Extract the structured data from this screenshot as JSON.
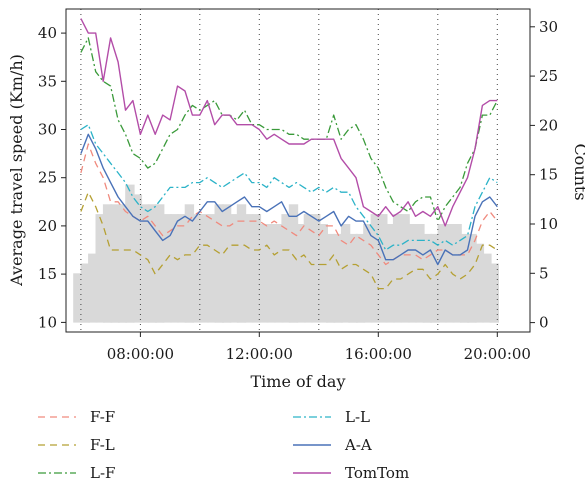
{
  "chart_data": {
    "type": "line",
    "xlabel": "Time of day",
    "ylabel_left": "Average travel speed (Km/h)",
    "ylabel_right": "Counts",
    "x_ticks": [
      "08:00:00",
      "12:00:00",
      "16:00:00",
      "20:00:00"
    ],
    "x_tick_hours": [
      8,
      12,
      16,
      20
    ],
    "x_range_hours": [
      5.5,
      21.1
    ],
    "y_left_ticks": [
      10,
      15,
      20,
      25,
      30,
      35,
      40
    ],
    "y_left_range": [
      9,
      42.5
    ],
    "y_right_ticks": [
      0,
      5,
      10,
      15,
      20,
      25,
      30
    ],
    "y_right_range": [
      -0.95,
      31.8
    ],
    "vertical_gridlines_hours": [
      6,
      8,
      10,
      12,
      14,
      16,
      18,
      20
    ],
    "x_hours": [
      6.0,
      6.25,
      6.5,
      6.75,
      7.0,
      7.25,
      7.5,
      7.75,
      8.0,
      8.25,
      8.5,
      8.75,
      9.0,
      9.25,
      9.5,
      9.75,
      10.0,
      10.25,
      10.5,
      10.75,
      11.0,
      11.25,
      11.5,
      11.75,
      12.0,
      12.25,
      12.5,
      12.75,
      13.0,
      13.25,
      13.5,
      13.75,
      14.0,
      14.25,
      14.5,
      14.75,
      15.0,
      15.25,
      15.5,
      15.75,
      16.0,
      16.25,
      16.5,
      16.75,
      17.0,
      17.25,
      17.5,
      17.75,
      18.0,
      18.25,
      18.5,
      18.75,
      19.0,
      19.25,
      19.5,
      19.75,
      20.0
    ],
    "bar_hours": [
      5.9,
      6.15,
      6.4,
      6.65,
      6.9,
      7.15,
      7.4,
      7.65,
      7.9,
      8.15,
      8.4,
      8.65,
      8.9,
      9.15,
      9.4,
      9.65,
      9.9,
      10.15,
      10.4,
      10.65,
      10.9,
      11.15,
      11.4,
      11.65,
      11.9,
      12.15,
      12.4,
      12.65,
      12.9,
      13.15,
      13.4,
      13.65,
      13.9,
      14.15,
      14.4,
      14.65,
      14.9,
      15.15,
      15.4,
      15.65,
      15.9,
      16.15,
      16.4,
      16.65,
      16.9,
      17.15,
      17.4,
      17.65,
      17.9,
      18.15,
      18.4,
      18.65,
      18.9,
      19.15,
      19.4,
      19.65,
      19.9
    ],
    "bar_counts": [
      5,
      6,
      7,
      11,
      12,
      12,
      12,
      14,
      13,
      12,
      12,
      12,
      11,
      11,
      11,
      12,
      11,
      11,
      11,
      12,
      12,
      11,
      12,
      11,
      11,
      10,
      10,
      10,
      11,
      12,
      10,
      11,
      11,
      10,
      9,
      9,
      10,
      9,
      9,
      10,
      11,
      11,
      10,
      11,
      11,
      10,
      10,
      9,
      9,
      10,
      10,
      10,
      9,
      9,
      8,
      7,
      6
    ],
    "series": [
      {
        "name": "F-F",
        "color": "#f08a7e",
        "dash": "7,5",
        "width": 1.3,
        "values": [
          25.5,
          28.5,
          26.5,
          25,
          22.5,
          22.5,
          21.5,
          21,
          20.5,
          21,
          20,
          19,
          19.5,
          20,
          20,
          21,
          21.5,
          21,
          20.5,
          20,
          20,
          20.5,
          20.5,
          20.5,
          20.5,
          20,
          20.5,
          20,
          19.5,
          19,
          20,
          19.5,
          19,
          20,
          20,
          18.5,
          18,
          19,
          18.5,
          18,
          17,
          16,
          16.5,
          17,
          17,
          17,
          16.5,
          17,
          17.5,
          17.5,
          17,
          17,
          17,
          18.5,
          20.5,
          21.5,
          20.5
        ]
      },
      {
        "name": "F-L",
        "color": "#b5a033",
        "dash": "7,5",
        "width": 1.3,
        "values": [
          21.5,
          23.5,
          22,
          20,
          17.5,
          17.5,
          17.5,
          17.5,
          17,
          16.5,
          15,
          16,
          17,
          16.5,
          17,
          17,
          18,
          18,
          17.5,
          17,
          18,
          18,
          18,
          17.5,
          17.5,
          18,
          17,
          17.5,
          17.5,
          16.5,
          17,
          16,
          16,
          16,
          17,
          15.5,
          16,
          16,
          15.5,
          15,
          13.5,
          13.5,
          14.5,
          14.5,
          15,
          15.5,
          15.5,
          14.5,
          15,
          16,
          15,
          14.5,
          15,
          16,
          18,
          18,
          17.5
        ]
      },
      {
        "name": "L-F",
        "color": "#3a9a3a",
        "dash": "8,3,2,3",
        "width": 1.3,
        "values": [
          38,
          39.5,
          36,
          35,
          34.5,
          31,
          29.5,
          27.5,
          27,
          26,
          26.5,
          28,
          29.5,
          30,
          31.5,
          32.5,
          32,
          32.5,
          33,
          31.5,
          31.5,
          31,
          32,
          30.5,
          30.5,
          30,
          30,
          30,
          29.5,
          29.5,
          29,
          29,
          29,
          29,
          31.5,
          29,
          30,
          30.5,
          29,
          27,
          26,
          24,
          22.5,
          22,
          21.5,
          22.5,
          23,
          23,
          20.5,
          22,
          23,
          24,
          26.5,
          28,
          31.5,
          31.5,
          33
        ]
      },
      {
        "name": "L-L",
        "color": "#2cb3c8",
        "dash": "8,3,2,3",
        "width": 1.3,
        "values": [
          30,
          30.5,
          28.5,
          27.5,
          26.5,
          25.5,
          24.5,
          23,
          22,
          21.5,
          22,
          23,
          24,
          24,
          24,
          24.5,
          24.5,
          25,
          24.5,
          24,
          24.5,
          25,
          25.5,
          24.5,
          24.5,
          24,
          25,
          24.5,
          24,
          24.5,
          24,
          23.5,
          24,
          23.5,
          24,
          23.5,
          23.5,
          22,
          21,
          20,
          19,
          17.5,
          18,
          18,
          18.5,
          18.5,
          18.5,
          18.5,
          18,
          18.5,
          18,
          18.5,
          19,
          22,
          23.5,
          25,
          24.5
        ]
      },
      {
        "name": "A-A",
        "color": "#4a72b8",
        "dash": "",
        "width": 1.4,
        "values": [
          27.5,
          29.5,
          28,
          26,
          24.5,
          23,
          22,
          21,
          20.5,
          20.5,
          19.5,
          18.5,
          19,
          20.5,
          21,
          20.5,
          21.5,
          22.5,
          22.5,
          21.5,
          22,
          22.5,
          23,
          22,
          22,
          21.5,
          22,
          22.5,
          21,
          21,
          21.5,
          21,
          20.5,
          21,
          21.5,
          20,
          21,
          20.5,
          20.5,
          19,
          18.5,
          16.5,
          16.5,
          17,
          17.5,
          17.5,
          17,
          17.5,
          16,
          17.5,
          17,
          17,
          17.5,
          21,
          22.5,
          23,
          22
        ]
      },
      {
        "name": "TomTom",
        "color": "#b34da8",
        "dash": "",
        "width": 1.4,
        "values": [
          41.5,
          40,
          40,
          35,
          39.5,
          37,
          32,
          33,
          29.5,
          31.5,
          29.5,
          31.5,
          31,
          34.5,
          34,
          31.5,
          31.5,
          33,
          30.5,
          31.5,
          31.5,
          30.5,
          30.5,
          30.5,
          30,
          29,
          29.5,
          29,
          28.5,
          28.5,
          28.5,
          29,
          29,
          29,
          29,
          27,
          26,
          25,
          22,
          21.5,
          21,
          22,
          21,
          21.5,
          22.5,
          21,
          21.5,
          21,
          22,
          20,
          22,
          23.5,
          25,
          28,
          32.5,
          33,
          33
        ]
      }
    ],
    "legend_placement": "bottom, two columns"
  }
}
